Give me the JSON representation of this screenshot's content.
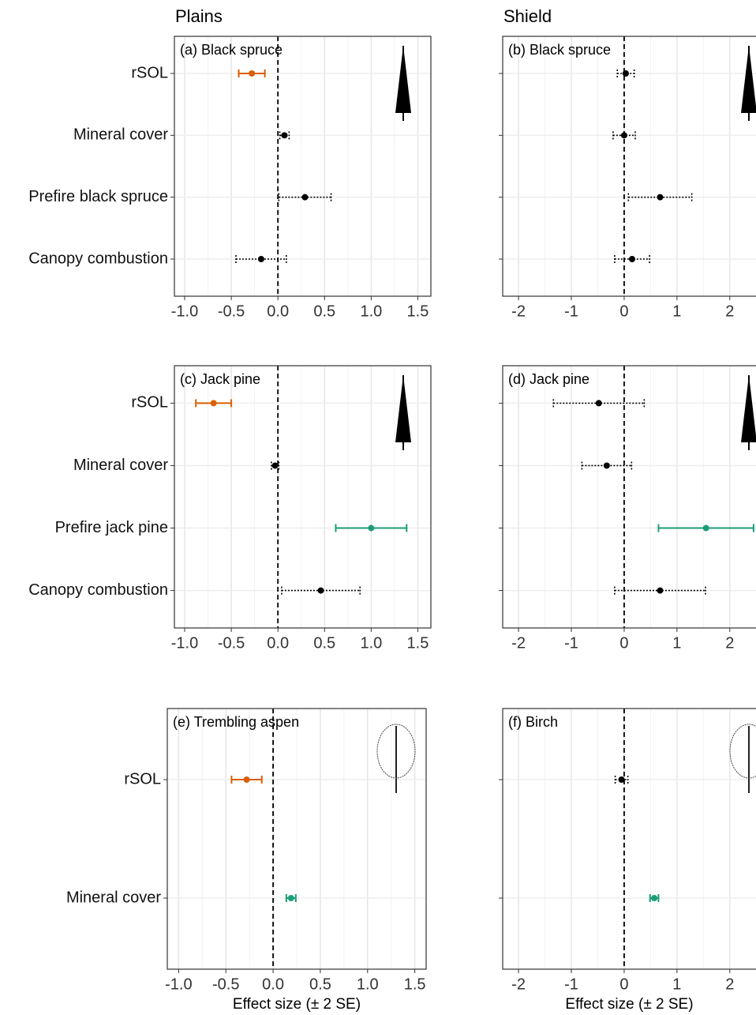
{
  "columns": [
    "Plains",
    "Shield"
  ],
  "chart_data": [
    {
      "type": "forest",
      "title": "(a) Black spruce",
      "categories": [
        "rSOL",
        "Mineral cover",
        "Prefire black spruce",
        "Canopy combustion"
      ],
      "values": [
        -0.28,
        0.07,
        0.29,
        -0.18
      ],
      "errors": [
        0.14,
        0.05,
        0.28,
        0.27
      ],
      "colors": [
        "#d95f02",
        "#000000",
        "#000000",
        "#000000"
      ],
      "line_styles": [
        "solid",
        "dotted",
        "dotted",
        "dotted"
      ],
      "xlim": [
        -1.11,
        1.64
      ],
      "xticks": [
        {
          "value": -1,
          "label": "-1.0"
        },
        -0.5,
        {
          "value": 0,
          "label": "0.0"
        },
        0.5,
        {
          "value": 1,
          "label": "1.0"
        },
        1.5
      ],
      "grid": true
    },
    {
      "type": "forest",
      "title": "(b) Black spruce",
      "categories": [
        null,
        null,
        null,
        null
      ],
      "values": [
        0.03,
        0.0,
        0.68,
        0.15
      ],
      "errors": [
        0.16,
        0.21,
        0.6,
        0.33
      ],
      "colors": [
        "#000000",
        "#000000",
        "#000000",
        "#000000"
      ],
      "line_styles": [
        "dotted",
        "dotted",
        "dotted",
        "dotted"
      ],
      "xlim": [
        -2.3,
        2.75
      ],
      "xticks": [
        -2,
        -1,
        0,
        1,
        2
      ],
      "grid": true
    },
    {
      "type": "forest",
      "title": "(c) Jack pine",
      "categories": [
        "rSOL",
        "Mineral cover",
        "Prefire jack pine",
        "Canopy combustion"
      ],
      "values": [
        -0.69,
        -0.03,
        1.0,
        0.46
      ],
      "errors": [
        0.19,
        0.04,
        0.38,
        0.42
      ],
      "colors": [
        "#d95f02",
        "#000000",
        "#1b9e77",
        "#000000"
      ],
      "line_styles": [
        "solid",
        "dotted",
        "solid",
        "dotted"
      ],
      "xlim": [
        -1.11,
        1.64
      ],
      "xticks": [
        {
          "value": -1,
          "label": "-1.0"
        },
        -0.5,
        {
          "value": 0,
          "label": "0.0"
        },
        0.5,
        {
          "value": 1,
          "label": "1.0"
        },
        1.5
      ],
      "grid": true
    },
    {
      "type": "forest",
      "title": "(d) Jack pine",
      "categories": [
        null,
        null,
        null,
        null
      ],
      "values": [
        -0.48,
        -0.33,
        1.55,
        0.68
      ],
      "errors": [
        0.86,
        0.47,
        0.9,
        0.86
      ],
      "colors": [
        "#000000",
        "#000000",
        "#1b9e77",
        "#000000"
      ],
      "line_styles": [
        "dotted",
        "dotted",
        "solid",
        "dotted"
      ],
      "xlim": [
        -2.3,
        2.75
      ],
      "xticks": [
        -2,
        -1,
        0,
        1,
        2
      ],
      "grid": true
    },
    {
      "type": "forest",
      "title": "(e) Trembling aspen",
      "categories": [
        "rSOL",
        "Mineral cover"
      ],
      "values": [
        -0.28,
        0.19
      ],
      "errors": [
        0.16,
        0.05
      ],
      "colors": [
        "#d95f02",
        "#1b9e77"
      ],
      "line_styles": [
        "solid",
        "solid"
      ],
      "xlim": [
        -1.12,
        1.62
      ],
      "xticks": [
        {
          "value": -1,
          "label": "-1.0"
        },
        -0.5,
        {
          "value": 0,
          "label": "0.0"
        },
        0.5,
        {
          "value": 1,
          "label": "1.0"
        },
        1.5
      ],
      "xlabel": "Effect size (± 2 SE)",
      "grid": true
    },
    {
      "type": "forest",
      "title": "(f) Birch",
      "categories": [
        null,
        null
      ],
      "values": [
        -0.05,
        0.57
      ],
      "errors": [
        0.12,
        0.08
      ],
      "colors": [
        "#000000",
        "#1b9e77"
      ],
      "line_styles": [
        "dotted",
        "solid"
      ],
      "xlim": [
        -2.3,
        2.75
      ],
      "xticks": [
        -2,
        -1,
        0,
        1,
        2
      ],
      "xlabel": "Effect size (± 2 SE)",
      "grid": true
    }
  ]
}
